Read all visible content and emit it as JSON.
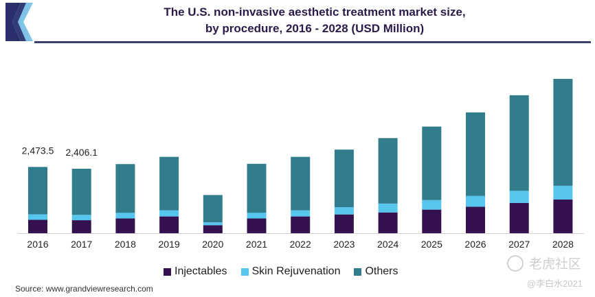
{
  "header": {
    "title_line1": "The U.S. non-invasive aesthetic treatment market size,",
    "title_line2": "by procedure, 2016 - 2028 (USD Million)"
  },
  "colors": {
    "brand": "#3c3f74",
    "logo_dark": "#2a2f6b",
    "logo_light": "#7fc3e8"
  },
  "chart_data": {
    "type": "bar",
    "stacked": true,
    "categories": [
      "2016",
      "2017",
      "2018",
      "2019",
      "2020",
      "2021",
      "2022",
      "2023",
      "2024",
      "2025",
      "2026",
      "2027",
      "2028"
    ],
    "series": [
      {
        "name": "Injectables",
        "color": "#33124f",
        "values": [
          500,
          485,
          550,
          625,
          300,
          550,
          625,
          700,
          775,
          880,
          990,
          1130,
          1260
        ]
      },
      {
        "name": "Skin Rejuvenation",
        "color": "#57c6ee",
        "values": [
          205,
          200,
          210,
          230,
          105,
          210,
          230,
          270,
          330,
          360,
          400,
          450,
          510
        ]
      },
      {
        "name": "Others",
        "color": "#317d8e",
        "values": [
          1768.5,
          1721.1,
          1820,
          1995,
          1020,
          1830,
          1995,
          2150,
          2445,
          2740,
          3120,
          3570,
          3990
        ]
      }
    ],
    "data_labels": [
      {
        "category": "2016",
        "text": "2,473.5"
      },
      {
        "category": "2017",
        "text": "2,406.1"
      }
    ],
    "ylim": [
      0,
      6000
    ],
    "grid": false,
    "legend_position": "bottom"
  },
  "legend": {
    "items": [
      {
        "label": "Injectables",
        "color": "#33124f"
      },
      {
        "label": "Skin Rejuvenation",
        "color": "#57c6ee"
      },
      {
        "label": "Others",
        "color": "#317d8e"
      }
    ]
  },
  "source": "Source: www.grandviewresearch.com",
  "watermark": {
    "main": "老虎社区",
    "sub": "@李白水2021"
  }
}
